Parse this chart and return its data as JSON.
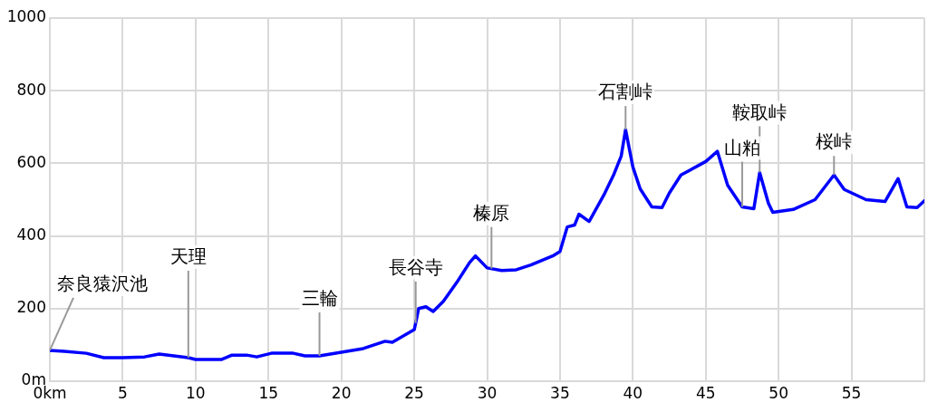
{
  "chart_data": {
    "type": "line",
    "x": [
      0,
      1,
      2.5,
      3.7,
      5,
      6.5,
      7.5,
      8.5,
      9.5,
      10,
      11.8,
      12.5,
      13.5,
      14.2,
      15.2,
      16.7,
      17.5,
      18.5,
      20,
      21.5,
      23,
      23.5,
      25,
      25.1,
      25.3,
      25.8,
      26.3,
      27,
      28,
      28.8,
      29.2,
      30,
      31,
      32,
      33,
      34.5,
      35,
      35.5,
      36,
      36.3,
      37,
      38,
      38.7,
      39.2,
      39.5,
      40,
      40.5,
      41.3,
      42,
      42.5,
      43.3,
      45,
      45.8,
      46.5,
      47.5,
      48.3,
      48.7,
      49.3,
      49.6,
      51,
      52.5,
      53.8,
      54.5,
      56,
      57.3,
      58.2,
      58.8,
      59.5,
      60
    ],
    "series": [
      {
        "color": "#0000ff",
        "values": [
          85,
          82,
          77,
          65,
          65,
          67,
          75,
          70,
          65,
          60,
          60,
          72,
          72,
          67,
          77,
          77,
          70,
          70,
          80,
          90,
          110,
          107,
          142,
          160,
          200,
          205,
          192,
          220,
          277,
          327,
          345,
          312,
          305,
          307,
          320,
          345,
          357,
          425,
          430,
          460,
          440,
          512,
          570,
          620,
          693,
          590,
          530,
          480,
          478,
          518,
          568,
          605,
          633,
          540,
          480,
          475,
          575,
          490,
          465,
          473,
          500,
          568,
          528,
          500,
          495,
          558,
          480,
          478,
          497
        ]
      }
    ],
    "xlim": [
      0,
      60
    ],
    "xticks": [
      {
        "value": 0,
        "label": "0km"
      },
      5,
      10,
      15,
      20,
      25,
      30,
      35,
      40,
      45,
      50,
      55,
      {
        "value": 60,
        "label": null
      }
    ],
    "ylim": [
      0,
      1000
    ],
    "yticks": [
      {
        "value": 0,
        "label": "0m"
      },
      200,
      400,
      600,
      800,
      1000
    ],
    "grid": true,
    "legend": false,
    "marker": "none",
    "line_style": "solid",
    "annotations": [
      {
        "text": "奈良猿沢池",
        "x": 0,
        "y": 85
      },
      {
        "text": "天理",
        "x": 9.5,
        "y": 65
      },
      {
        "text": "三輪",
        "x": 18.5,
        "y": 70
      },
      {
        "text": "長谷寺",
        "x": 25.1,
        "y": 160
      },
      {
        "text": "榛原",
        "x": 30.3,
        "y": 310
      },
      {
        "text": "石割峠",
        "x": 39.5,
        "y": 693
      },
      {
        "text": "鞍取峠",
        "x": 48.7,
        "y": 575
      },
      {
        "text": "山粕",
        "x": 47.5,
        "y": 480
      },
      {
        "text": "桜峠",
        "x": 53.8,
        "y": 568
      }
    ]
  }
}
